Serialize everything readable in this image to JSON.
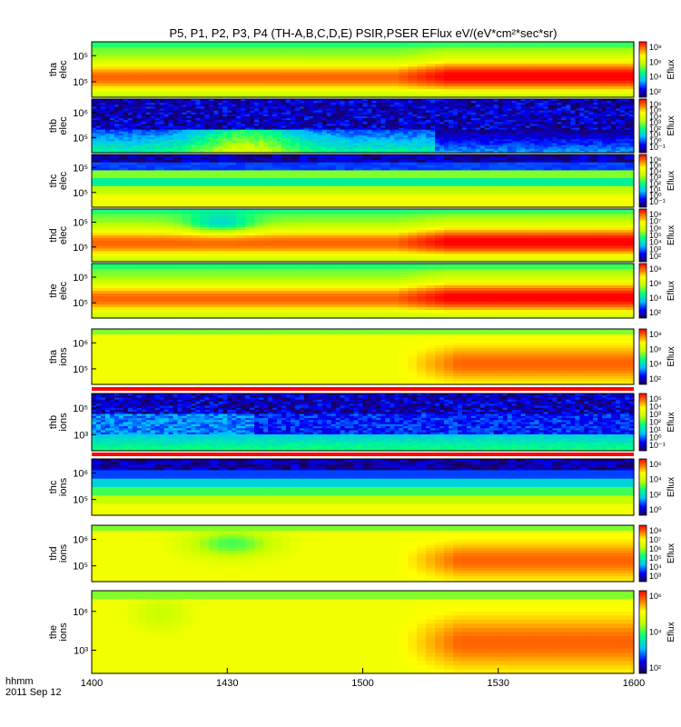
{
  "chart_data": {
    "type": "heatmap",
    "title": "P5, P1, P2, P3, P4 (TH-A,B,C,D,E) PSIR,PSER EFlux eV/(eV*cm²*sec*sr)",
    "x_ticks": [
      "1400",
      "1430",
      "1500",
      "1530",
      "1600"
    ],
    "time_label": "hhmm",
    "date_label": "2011 Sep 12",
    "colorbar_label": "Eflux",
    "panels": [
      {
        "probe": "tha",
        "species": "elec",
        "y_ticks": [
          "10⁵",
          "10⁵"
        ],
        "colorbar_ticks": [
          "10⁸",
          "10⁶",
          "10⁴",
          "10²"
        ],
        "style": "electron-a"
      },
      {
        "probe": "thb",
        "species": "elec",
        "y_ticks": [
          "10⁶",
          "10⁵"
        ],
        "colorbar_ticks": [
          "10⁶",
          "10⁵",
          "10⁴",
          "10³",
          "10²",
          "10¹",
          "10⁰",
          "10⁻¹"
        ],
        "style": "electron-b"
      },
      {
        "probe": "thc",
        "species": "elec",
        "y_ticks": [
          "10⁵",
          "10⁵"
        ],
        "colorbar_ticks": [
          "10⁶",
          "10⁵",
          "10⁴",
          "10³",
          "10²",
          "10¹",
          "10⁰",
          "10⁻¹"
        ],
        "style": "bands"
      },
      {
        "probe": "thd",
        "species": "elec",
        "y_ticks": [
          "10⁵",
          "10⁵"
        ],
        "colorbar_ticks": [
          "10⁸",
          "10⁷",
          "10⁶",
          "10⁵",
          "10⁴",
          "10³",
          "10²"
        ],
        "style": "electron-d"
      },
      {
        "probe": "the",
        "species": "elec",
        "y_ticks": [
          "10⁵",
          "10⁵"
        ],
        "colorbar_ticks": [
          "10⁸",
          "10⁶",
          "10⁴",
          "10²"
        ],
        "style": "electron-e"
      },
      {
        "probe": "tha",
        "species": "ions",
        "y_ticks": [
          "10⁶",
          "10⁵"
        ],
        "colorbar_ticks": [
          "10⁸",
          "10⁶",
          "10⁴",
          "10²"
        ],
        "style": "ion"
      },
      {
        "probe": "thb",
        "species": "ions",
        "y_ticks": [
          "10⁵",
          "10³"
        ],
        "colorbar_ticks": [
          "10⁵",
          "10⁴",
          "10³",
          "10²",
          "10¹",
          "10⁰",
          "10⁻¹"
        ],
        "style": "ion-b"
      },
      {
        "probe": "thc",
        "species": "ions",
        "y_ticks": [
          "10⁶",
          "10⁵"
        ],
        "colorbar_ticks": [
          "10⁶",
          "10⁴",
          "10²",
          "10⁰"
        ],
        "style": "bands-ion"
      },
      {
        "probe": "thd",
        "species": "ions",
        "y_ticks": [
          "10⁶",
          "10⁵"
        ],
        "colorbar_ticks": [
          "10⁸",
          "10⁷",
          "10⁶",
          "10⁵",
          "10⁴",
          "10³"
        ],
        "style": "ion-d"
      },
      {
        "probe": "the",
        "species": "ions",
        "y_ticks": [
          "10⁶",
          "10³"
        ],
        "colorbar_ticks": [
          "10⁶",
          "10⁴",
          "10²"
        ],
        "style": "ion-e"
      }
    ]
  }
}
